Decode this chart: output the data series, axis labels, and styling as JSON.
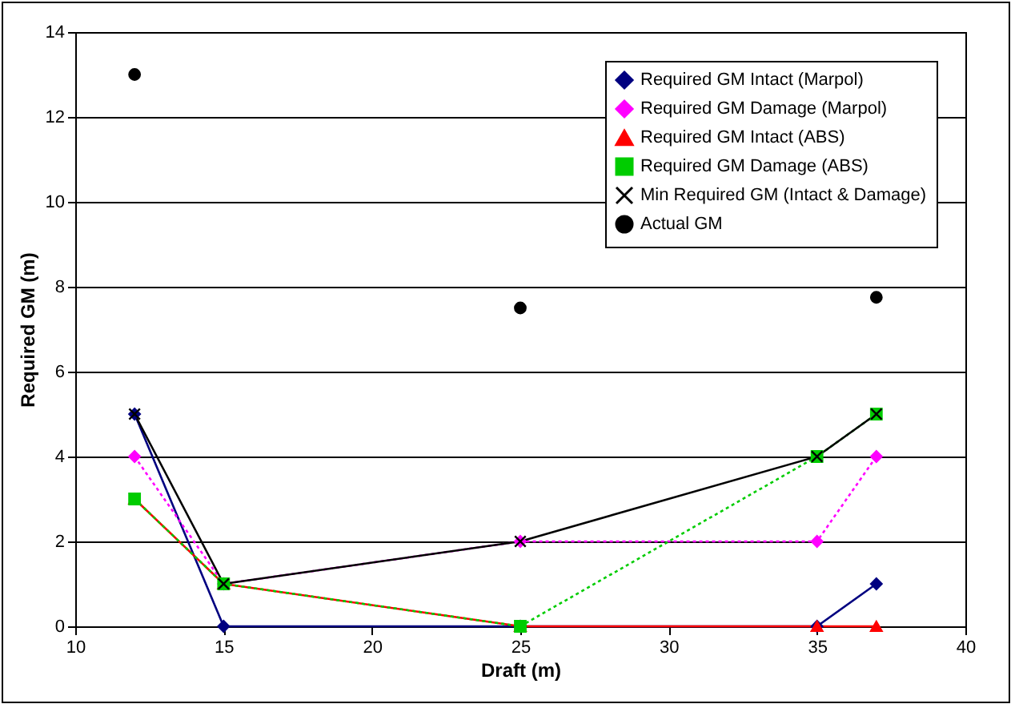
{
  "chart_data": {
    "type": "line",
    "xlabel": "Draft (m)",
    "ylabel": "Required GM (m)",
    "x": [
      12,
      15,
      25,
      35,
      37
    ],
    "xlim": [
      10,
      40
    ],
    "xticks": [
      10,
      15,
      20,
      25,
      30,
      35,
      40
    ],
    "ylim": [
      0,
      14
    ],
    "yticks": [
      0,
      2,
      4,
      6,
      8,
      10,
      12,
      14
    ],
    "grid": "y",
    "legend": "top right",
    "series": [
      {
        "name": "Required GM Intact (Marpol)",
        "color": "#000080",
        "values": [
          5,
          0,
          0,
          0,
          1
        ],
        "marker": "diamond",
        "line_style": "solid"
      },
      {
        "name": "Required GM Damage (Marpol)",
        "color": "#ff00ff",
        "values": [
          4,
          1,
          2,
          2,
          4
        ],
        "marker": "diamond",
        "line_style": "dotted"
      },
      {
        "name": "Required GM Intact (ABS)",
        "color": "#ff0000",
        "values": [
          3,
          1,
          0,
          0,
          0
        ],
        "marker": "triangle",
        "line_style": "solid"
      },
      {
        "name": "Required GM Damage (ABS)",
        "color": "#00cc00",
        "values": [
          3,
          1,
          0,
          4,
          5
        ],
        "marker": "square",
        "line_style": "dotted"
      },
      {
        "name": "Min Required GM (Intact & Damage)",
        "color": "#000000",
        "values": [
          5,
          1,
          2,
          4,
          5
        ],
        "marker": "cross",
        "line_style": "solid"
      },
      {
        "name": "Actual GM",
        "type": "scatter",
        "color": "#000000",
        "values": [
          13,
          null,
          7.5,
          null,
          7.75
        ],
        "marker": "circle"
      }
    ]
  }
}
